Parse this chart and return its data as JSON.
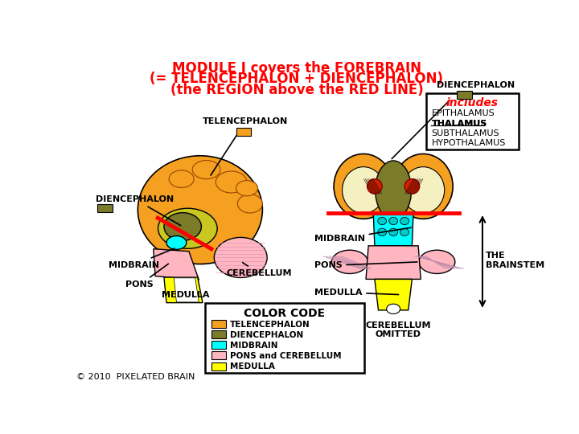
{
  "title_line1": "MODULE I covers the FOREBRAIN",
  "title_line2": "(= TELENCEPHALON + DIENCEPHALON)",
  "title_line3": "(the REGION above the RED LINE)",
  "title_color": "red",
  "colors": {
    "telencephalon": "#F5A020",
    "diencephalon": "#7B7B2A",
    "midbrain": "#00FFFF",
    "pons_cerebellum": "#FFB6C1",
    "medulla": "#FFFF00",
    "lime_inner": "#C8C820",
    "cream": "#F5F0C0"
  },
  "legend_title": "COLOR CODE",
  "legend_items": [
    {
      "label": "TELENCEPHALON",
      "color": "#F5A020"
    },
    {
      "label": "DIENCEPHALON",
      "color": "#7B7B2A"
    },
    {
      "label": "MIDBRAIN",
      "color": "#00FFFF"
    },
    {
      "label": "PONS and CEREBELLUM",
      "color": "#FFB6C1"
    },
    {
      "label": "MEDULLA",
      "color": "#FFFF00"
    }
  ],
  "includes_items": [
    "EPITHALAMUS",
    "THALAMUS",
    "SUBTHALAMUS",
    "HYPOTHALAMUS"
  ],
  "copyright": "© 2010  PIXELATED BRAIN"
}
